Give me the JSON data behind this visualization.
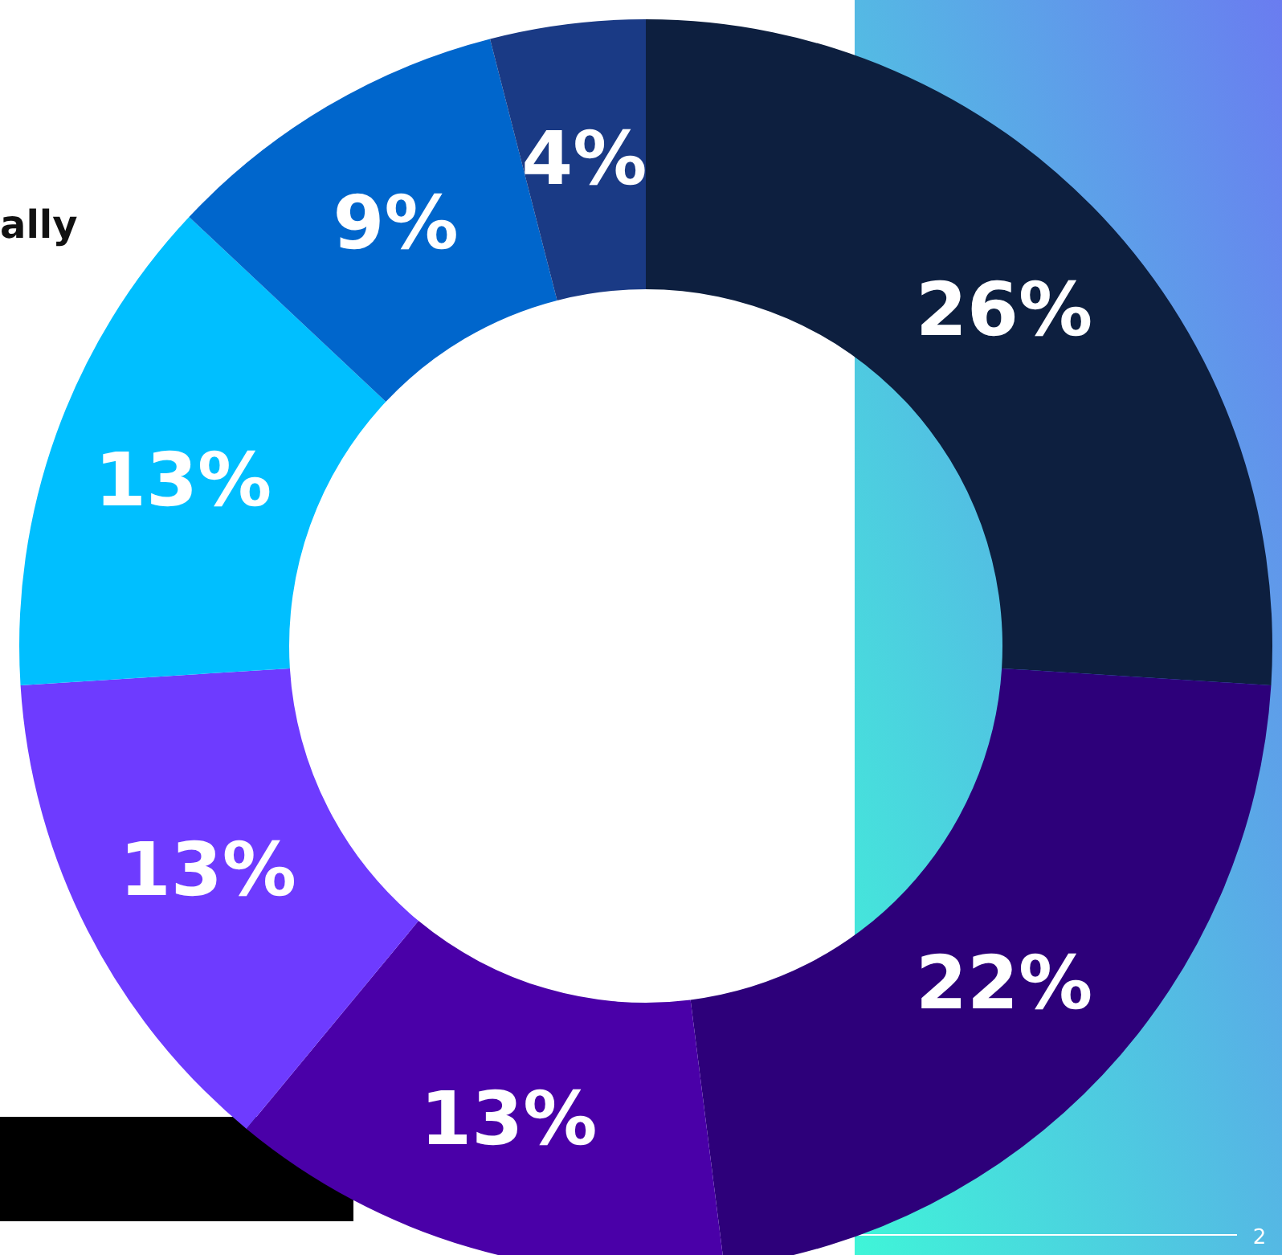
{
  "chart_data": {
    "type": "donut",
    "categories": [
      null,
      null,
      null,
      null,
      null,
      null,
      null
    ],
    "values": [
      26,
      22,
      13,
      13,
      13,
      9,
      4
    ],
    "colors": [
      "#0d1f3f",
      "#2d007a",
      "#4a00a8",
      "#6e3bff",
      "#00bfff",
      "#0066cc",
      "#1a3a85"
    ],
    "value_labels": [
      "26%",
      "22%",
      "13%",
      "13%",
      "13%",
      "9%",
      "4%"
    ],
    "annotations": [
      "ally",
      "2"
    ]
  }
}
